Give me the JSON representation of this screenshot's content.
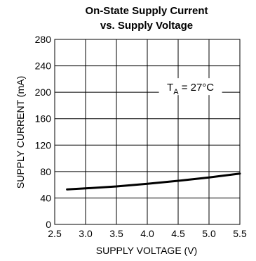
{
  "chart_data": {
    "type": "line",
    "title_lines": [
      "On-State Supply Current",
      "vs. Supply Voltage"
    ],
    "xlabel": "SUPPLY VOLTAGE (V)",
    "ylabel": "SUPPLY CURRENT (mA)",
    "x_ticks": [
      "2.5",
      "3.0",
      "3.5",
      "4.0",
      "4.5",
      "5.0",
      "5.5"
    ],
    "y_ticks": [
      "0",
      "40",
      "80",
      "120",
      "160",
      "200",
      "240",
      "280"
    ],
    "xlim": [
      2.5,
      5.5
    ],
    "ylim": [
      0,
      280
    ],
    "grid": true,
    "annotation": {
      "main": "T",
      "subscript": "A",
      "suffix": " = 27°C",
      "x": 4.7,
      "y": 200
    },
    "series": [
      {
        "values": [
          [
            2.7,
            53
          ],
          [
            3.0,
            54.5
          ],
          [
            3.5,
            57.5
          ],
          [
            4.0,
            61.5
          ],
          [
            4.5,
            66
          ],
          [
            5.0,
            71
          ],
          [
            5.5,
            77
          ]
        ]
      }
    ],
    "colors": {
      "line": "#000000",
      "grid": "#000000",
      "text": "#000000",
      "background": "#ffffff"
    }
  }
}
